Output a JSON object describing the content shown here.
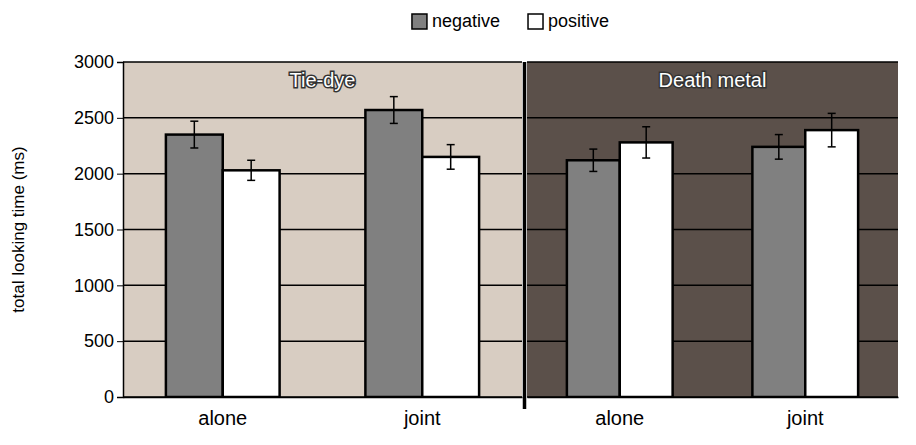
{
  "chart_data": [
    {
      "type": "bar",
      "title": "Tie-dye",
      "y_label": "total looking time (ms)",
      "categories": [
        "alone",
        "joint"
      ],
      "series": [
        {
          "name": "negative",
          "color": "#808080",
          "values": [
            2350,
            2570
          ],
          "errors": [
            120,
            120
          ]
        },
        {
          "name": "positive",
          "color": "#ffffff",
          "values": [
            2030,
            2150
          ],
          "errors": [
            90,
            110
          ]
        }
      ],
      "ylim": [
        0,
        3000
      ],
      "yticks": [
        0,
        500,
        1000,
        1500,
        2000,
        2500,
        3000
      ],
      "grid": true,
      "legend": "top"
    },
    {
      "type": "bar",
      "title": "Death metal",
      "categories": [
        "alone",
        "joint"
      ],
      "series": [
        {
          "color": "#808080",
          "values": [
            2120,
            2240
          ],
          "errors": [
            100,
            110
          ]
        },
        {
          "color": "#ffffff",
          "values": [
            2280,
            2390
          ],
          "errors": [
            140,
            150
          ]
        }
      ],
      "ylim": [
        0,
        3000
      ],
      "yticks": [
        0,
        500,
        1000,
        1500,
        2000,
        2500,
        3000
      ],
      "grid": true,
      "tick_labels": "x"
    }
  ]
}
